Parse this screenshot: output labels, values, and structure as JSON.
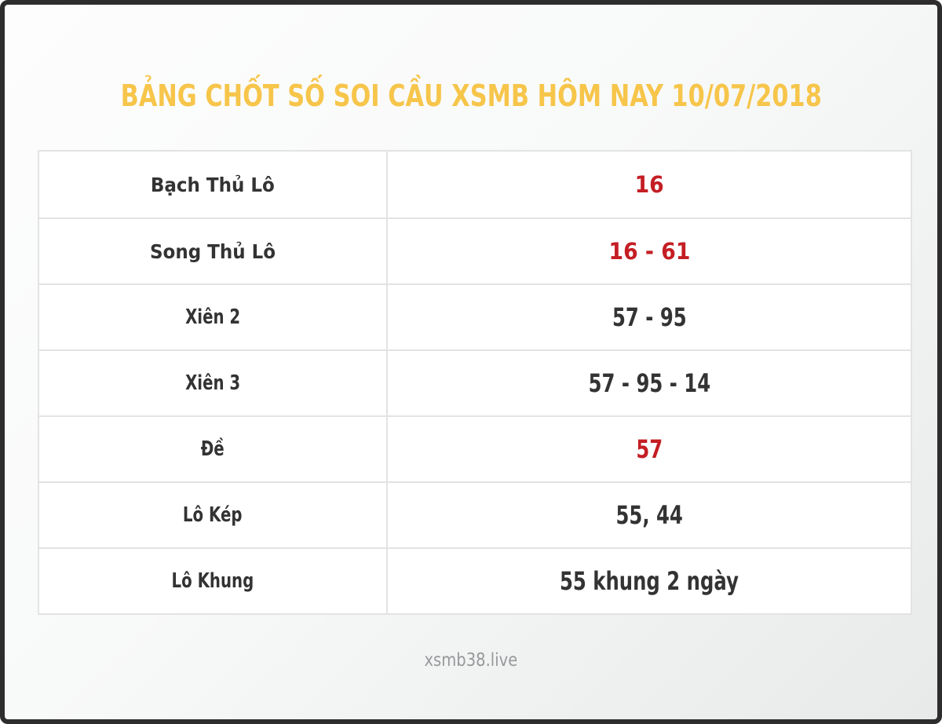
{
  "page": {
    "title": "BẢNG CHỐT SỐ SOI CẦU XSMB HÔM NAY 10/07/2018",
    "footer": "xsmb38.live"
  },
  "colors": {
    "title_text": "#f6c54a",
    "value_highlight": "#c41e24",
    "label_text": "#333333",
    "value_text": "#333333",
    "footer_text": "#97999b",
    "grid_line": "#e3e3e3",
    "frame_border": "#2d2d2d"
  },
  "table": {
    "rows": [
      {
        "label": "Bạch Thủ Lô",
        "value": "16",
        "highlight": true,
        "condensed": false
      },
      {
        "label": "Song Thủ Lô",
        "value": "16 - 61",
        "highlight": true,
        "condensed": false
      },
      {
        "label": "Xiên 2",
        "value": "57 - 95",
        "highlight": false,
        "condensed": true
      },
      {
        "label": "Xiên 3",
        "value": "57 - 95 - 14",
        "highlight": false,
        "condensed": true
      },
      {
        "label": "Đề",
        "value": "57",
        "highlight": true,
        "condensed": true
      },
      {
        "label": "Lô Kép",
        "value": "55, 44",
        "highlight": false,
        "condensed": true
      },
      {
        "label": "Lô Khung",
        "value": "55 khung 2 ngày",
        "highlight": false,
        "condensed": true
      }
    ]
  }
}
